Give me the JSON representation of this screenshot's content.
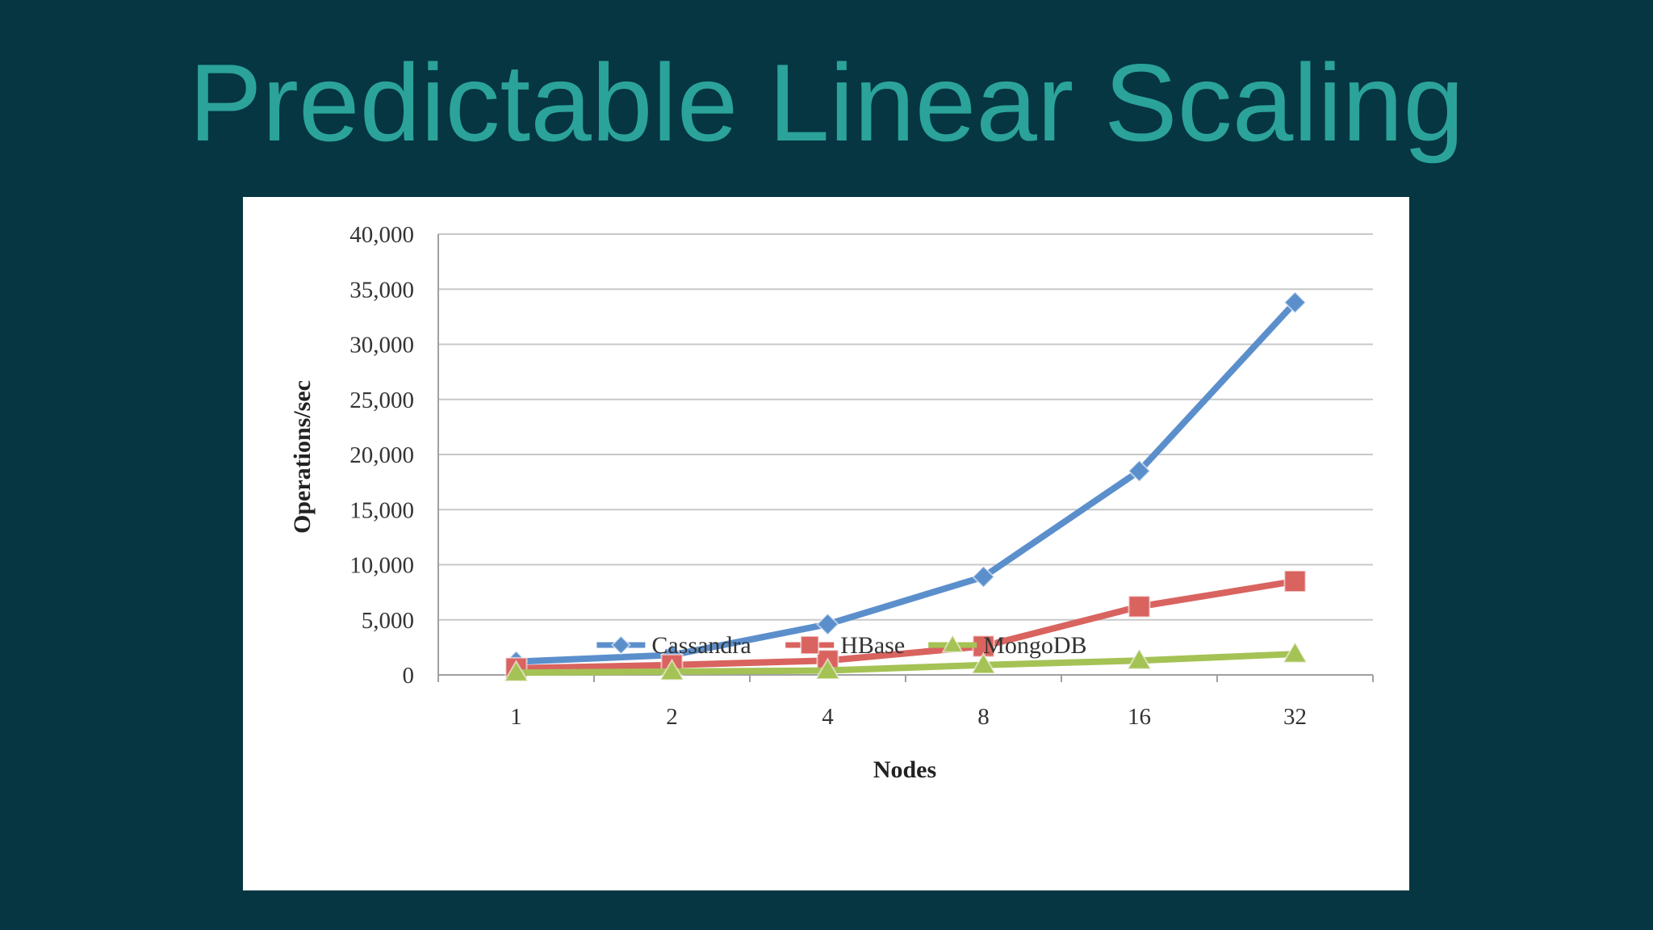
{
  "slide": {
    "title": "Predictable Linear Scaling"
  },
  "colors": {
    "background": "#053642",
    "title": "#2ba39a",
    "gridline": "#c8c8c8",
    "axis": "#a0a0a0"
  },
  "chart_data": {
    "type": "line",
    "title": "",
    "xlabel": "Nodes",
    "ylabel": "Operations/sec",
    "categories": [
      "1",
      "2",
      "4",
      "8",
      "16",
      "32"
    ],
    "ylim": [
      0,
      40000
    ],
    "y_ticks": [
      0,
      5000,
      10000,
      15000,
      20000,
      25000,
      30000,
      35000,
      40000
    ],
    "y_tick_labels": [
      "0",
      "5,000",
      "10,000",
      "15,000",
      "20,000",
      "25,000",
      "30,000",
      "35,000",
      "40,000"
    ],
    "grid": true,
    "legend_position": "bottom",
    "series": [
      {
        "name": "Cassandra",
        "values": [
          1200,
          1800,
          4600,
          8900,
          18500,
          33800
        ],
        "color": "#5b8fcc",
        "marker": "diamond"
      },
      {
        "name": "HBase",
        "values": [
          600,
          900,
          1300,
          2600,
          6200,
          8500
        ],
        "color": "#d9635f",
        "marker": "square"
      },
      {
        "name": "MongoDB",
        "values": [
          200,
          300,
          400,
          900,
          1300,
          1900
        ],
        "color": "#a5c255",
        "marker": "triangle"
      }
    ]
  }
}
